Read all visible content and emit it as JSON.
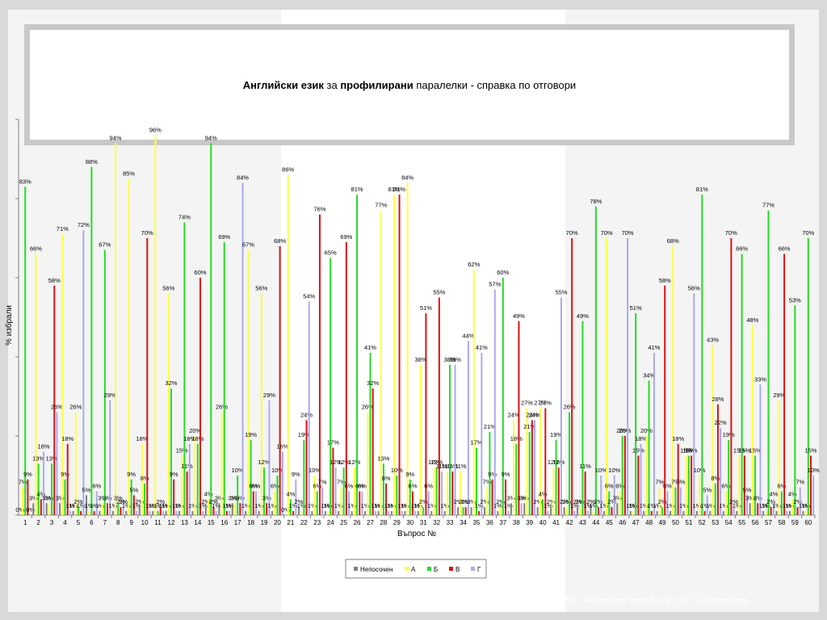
{
  "title": {
    "part1": "Английски език",
    "part2": " за ",
    "part3": "профилирани",
    "part4": " паралелки - справка по отговори"
  },
  "footer": "НВО - Английски език 2013, РИО - Костинброд",
  "chart_data": {
    "type": "bar",
    "xlabel": "Въпрос №",
    "ylabel": "% избрали",
    "ylim": [
      0,
      100
    ],
    "categories": [
      "1",
      "2",
      "3",
      "4",
      "5",
      "6",
      "7",
      "8",
      "9",
      "10",
      "11",
      "12",
      "13",
      "14",
      "15",
      "16",
      "17",
      "18",
      "19",
      "20",
      "21",
      "22",
      "23",
      "24",
      "25",
      "26",
      "27",
      "28",
      "29",
      "30",
      "31",
      "32",
      "33",
      "34",
      "35",
      "36",
      "37",
      "38",
      "39",
      "40",
      "41",
      "42",
      "43",
      "44",
      "45",
      "46",
      "47",
      "48",
      "49",
      "50",
      "51",
      "52",
      "53",
      "54",
      "55",
      "56",
      "57",
      "58",
      "59",
      "60"
    ],
    "series": [
      {
        "name": "Непосочен",
        "color": "#808080",
        "values": [
          0,
          3,
          3,
          3,
          1,
          5,
          1,
          1,
          1,
          2,
          1,
          1,
          1,
          1,
          2,
          3,
          3,
          1,
          1,
          1,
          0,
          2,
          1,
          1,
          1,
          1,
          1,
          1,
          1,
          1,
          1,
          1,
          1,
          2,
          2,
          2,
          1,
          3,
          3,
          2,
          2,
          2,
          2,
          2,
          1,
          3,
          1,
          1,
          1,
          1,
          1,
          1,
          1,
          1,
          1,
          3,
          1,
          1,
          1,
          1
        ]
      },
      {
        "name": "А",
        "color": "#ffff40",
        "values": [
          7,
          66,
          3,
          71,
          26,
          1,
          3,
          94,
          85,
          18,
          96,
          56,
          15,
          20,
          4,
          26,
          3,
          67,
          56,
          6,
          86,
          1,
          10,
          1,
          7,
          12,
          26,
          77,
          81,
          84,
          38,
          12,
          11,
          11,
          62,
          7,
          2,
          24,
          27,
          27,
          12,
          2,
          2,
          1,
          70,
          6,
          1,
          20,
          7,
          68,
          15,
          10,
          43,
          6,
          15,
          48,
          1,
          29,
          4,
          1
        ]
      },
      {
        "name": "Б",
        "color": "#22dd22",
        "values": [
          83,
          13,
          13,
          9,
          2,
          88,
          67,
          3,
          9,
          8,
          1,
          32,
          74,
          18,
          94,
          69,
          10,
          19,
          12,
          10,
          4,
          19,
          6,
          65,
          12,
          81,
          41,
          13,
          10,
          9,
          2,
          12,
          38,
          2,
          17,
          21,
          60,
          18,
          21,
          4,
          19,
          26,
          49,
          78,
          6,
          20,
          51,
          34,
          2,
          7,
          15,
          81,
          8,
          19,
          66,
          15,
          77,
          6,
          53,
          70
        ]
      },
      {
        "name": "В",
        "color": "#dd1111",
        "values": [
          9,
          4,
          58,
          18,
          1,
          1,
          3,
          2,
          5,
          70,
          2,
          9,
          11,
          60,
          2,
          1,
          3,
          6,
          3,
          68,
          1,
          24,
          76,
          17,
          69,
          6,
          32,
          8,
          81,
          6,
          51,
          55,
          11,
          2,
          1,
          9,
          9,
          49,
          24,
          27,
          12,
          70,
          11,
          2,
          2,
          20,
          15,
          1,
          58,
          18,
          15,
          1,
          28,
          70,
          15,
          3,
          2,
          66,
          2,
          15
        ]
      },
      {
        "name": "Г",
        "color": "#aaaaee",
        "values": [
          0,
          16,
          26,
          1,
          72,
          6,
          29,
          2,
          1,
          1,
          1,
          1,
          18,
          1,
          1,
          1,
          84,
          6,
          29,
          16,
          9,
          54,
          7,
          12,
          6,
          6,
          1,
          1,
          1,
          1,
          6,
          11,
          38,
          44,
          41,
          57,
          1,
          3,
          24,
          1,
          55,
          1,
          1,
          10,
          10,
          70,
          18,
          41,
          6,
          7,
          56,
          5,
          22,
          2,
          5,
          33,
          4,
          1,
          7,
          10
        ]
      }
    ],
    "legend_position": "bottom"
  }
}
